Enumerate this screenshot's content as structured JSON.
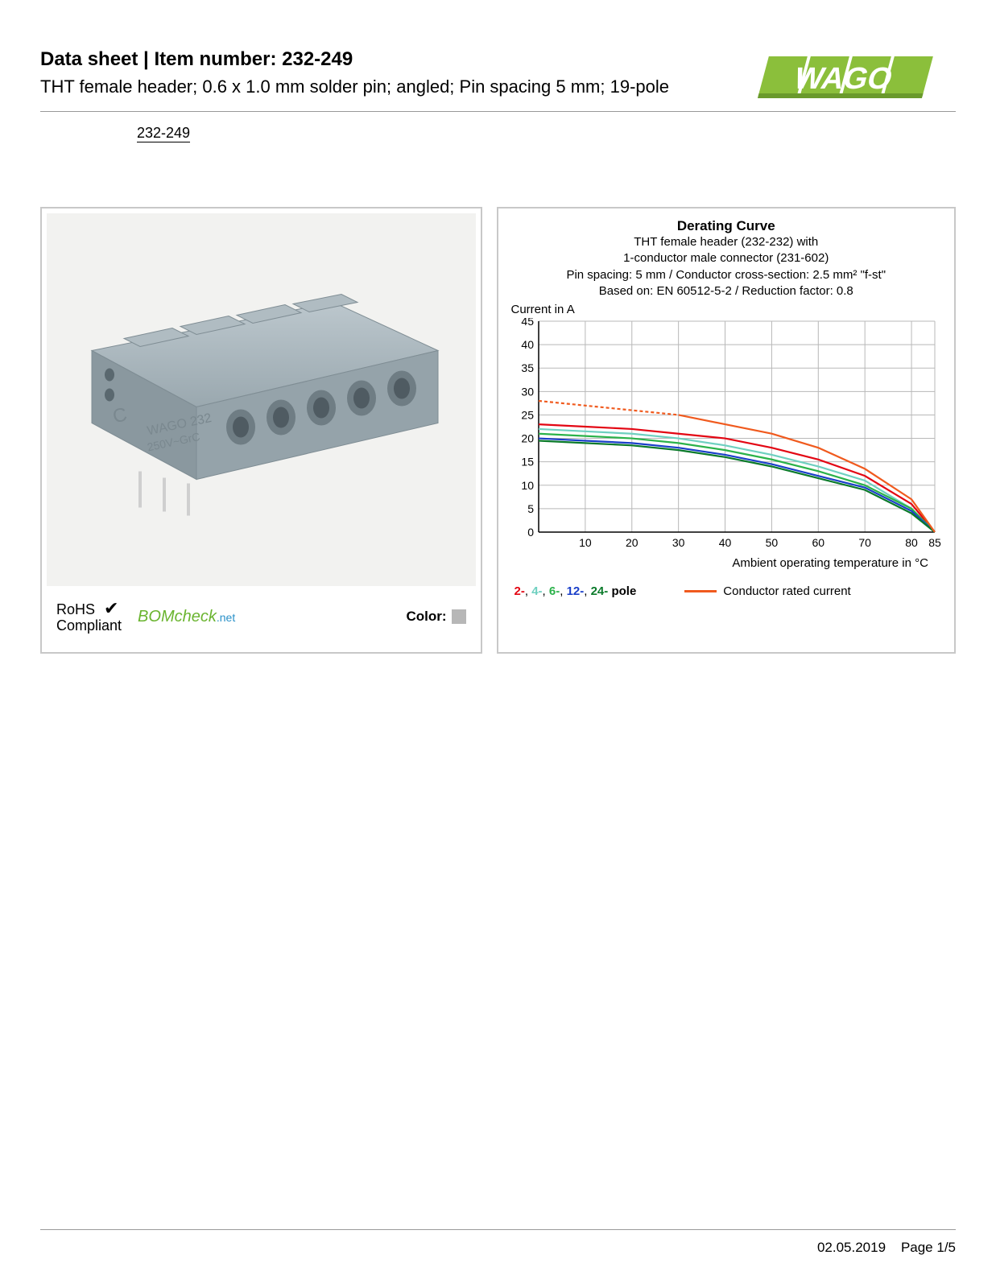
{
  "header": {
    "title_prefix": "Data sheet",
    "title_sep": "  |  ",
    "title_item_label": "Item number:",
    "item_number": "232-249",
    "subtitle": "THT female header; 0.6 x 1.0 mm solder pin; angled; Pin spacing 5 mm; 19-pole",
    "link_text": "232-249"
  },
  "logo": {
    "text": "WAGO",
    "fill": "#8bbf3b",
    "shadow": "#6a9a2c"
  },
  "left_panel": {
    "product_bg": "#e8e8e4",
    "connector_color": "#a5b3ba",
    "connector_shadow": "#7f8d94",
    "rohs_line1": "RoHS",
    "rohs_line2": "Compliant",
    "check": "✔",
    "bomcheck_main": "BOMcheck",
    "bomcheck_suffix": ".net",
    "bomcheck_color": "#6ab42f",
    "bomcheck_net_color": "#2a91c9",
    "color_label": "Color:",
    "color_swatch": "#b7b7b7"
  },
  "chart": {
    "title": "Derating Curve",
    "subtitle_lines": [
      "THT female header (232-232) with",
      "1-conductor male connector (231-602)",
      "Pin spacing: 5 mm / Conductor cross-section: 2.5 mm² \"f-st\"",
      "Based on: EN 60512-5-2 / Reduction factor: 0.8"
    ],
    "ylabel": "Current in A",
    "xlabel": "Ambient operating temperature in °C",
    "xlim": [
      0,
      85
    ],
    "ylim": [
      0,
      45
    ],
    "ytick_step": 5,
    "xticks": [
      10,
      20,
      30,
      40,
      50,
      60,
      70,
      80,
      85
    ],
    "grid_color": "#b8b8b8",
    "axis_color": "#000000",
    "plot_bg": "#ffffff",
    "series": [
      {
        "name": "2-pole",
        "color": "#e30613",
        "dash": "none",
        "points": [
          [
            0,
            23
          ],
          [
            10,
            22.5
          ],
          [
            20,
            22
          ],
          [
            30,
            21
          ],
          [
            40,
            20
          ],
          [
            50,
            18
          ],
          [
            60,
            15.5
          ],
          [
            70,
            12
          ],
          [
            80,
            6
          ],
          [
            85,
            0
          ]
        ]
      },
      {
        "name": "4-pole",
        "color": "#6fd0c0",
        "dash": "none",
        "points": [
          [
            0,
            22
          ],
          [
            10,
            21.5
          ],
          [
            20,
            21
          ],
          [
            30,
            20
          ],
          [
            40,
            18.5
          ],
          [
            50,
            16.5
          ],
          [
            60,
            14
          ],
          [
            70,
            11
          ],
          [
            80,
            5
          ],
          [
            85,
            0
          ]
        ]
      },
      {
        "name": "6-pole",
        "color": "#2bb24a",
        "dash": "none",
        "points": [
          [
            0,
            21
          ],
          [
            10,
            20.5
          ],
          [
            20,
            20
          ],
          [
            30,
            19
          ],
          [
            40,
            17.5
          ],
          [
            50,
            15.5
          ],
          [
            60,
            13
          ],
          [
            70,
            10
          ],
          [
            80,
            5
          ],
          [
            85,
            0
          ]
        ]
      },
      {
        "name": "12-pole",
        "color": "#1a3fc9",
        "dash": "none",
        "points": [
          [
            0,
            20
          ],
          [
            10,
            19.5
          ],
          [
            20,
            19
          ],
          [
            30,
            18
          ],
          [
            40,
            16.5
          ],
          [
            50,
            14.5
          ],
          [
            60,
            12
          ],
          [
            70,
            9.5
          ],
          [
            80,
            4.5
          ],
          [
            85,
            0
          ]
        ]
      },
      {
        "name": "24-pole",
        "color": "#0a7a2a",
        "dash": "none",
        "points": [
          [
            0,
            19.5
          ],
          [
            10,
            19
          ],
          [
            20,
            18.5
          ],
          [
            30,
            17.5
          ],
          [
            40,
            16
          ],
          [
            50,
            14
          ],
          [
            60,
            11.5
          ],
          [
            70,
            9
          ],
          [
            80,
            4
          ],
          [
            85,
            0
          ]
        ]
      },
      {
        "name": "conductor-rated",
        "color": "#f05a1e",
        "dash": "4,3",
        "points": [
          [
            0,
            28
          ],
          [
            10,
            27
          ],
          [
            20,
            26
          ],
          [
            30,
            25
          ]
        ]
      },
      {
        "name": "conductor-rated-solid",
        "color": "#f05a1e",
        "dash": "none",
        "points": [
          [
            30,
            25
          ],
          [
            40,
            23
          ],
          [
            50,
            21
          ],
          [
            60,
            18
          ],
          [
            70,
            13.5
          ],
          [
            80,
            7
          ],
          [
            85,
            0
          ]
        ]
      }
    ],
    "legend": {
      "poles": [
        {
          "label": "2-",
          "color": "#e30613"
        },
        {
          "label": "4-",
          "color": "#6fd0c0"
        },
        {
          "label": "6-",
          "color": "#2bb24a"
        },
        {
          "label": "12-",
          "color": "#1a3fc9"
        },
        {
          "label": "24-",
          "color": "#0a7a2a"
        }
      ],
      "poles_suffix": " pole",
      "rated_label": "Conductor rated current",
      "rated_color": "#f05a1e"
    }
  },
  "footer": {
    "date": "02.05.2019",
    "page": "Page 1/5"
  }
}
